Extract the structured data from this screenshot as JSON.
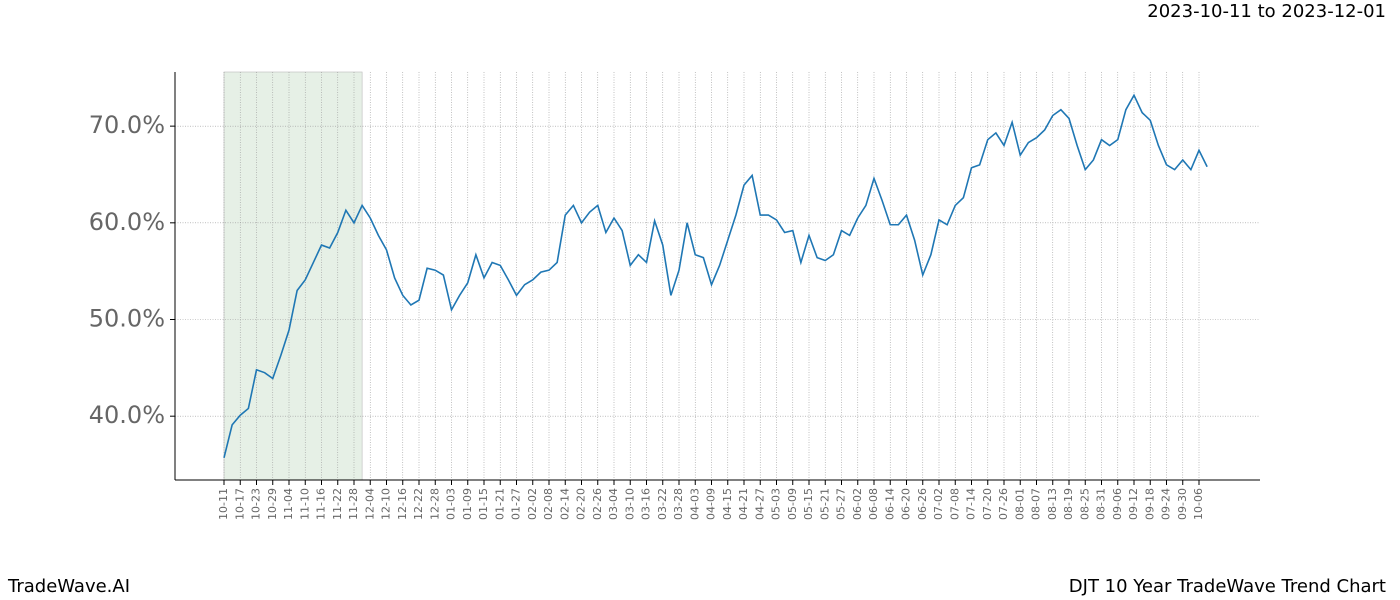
{
  "header": {
    "date_range": "2023-10-11 to 2023-12-01"
  },
  "footer": {
    "brand": "TradeWave.AI",
    "chart_name": "DJT 10 Year TradeWave Trend Chart"
  },
  "chart_data": {
    "type": "line",
    "categories": [
      "10-11",
      null,
      "10-17",
      null,
      "10-23",
      null,
      "10-29",
      null,
      "11-04",
      null,
      "11-10",
      null,
      "11-16",
      null,
      "11-22",
      null,
      "11-28",
      null,
      "12-04",
      null,
      "12-10",
      null,
      "12-16",
      null,
      "12-22",
      null,
      "12-28",
      null,
      "01-03",
      null,
      "01-09",
      null,
      "01-15",
      null,
      "01-21",
      null,
      "01-27",
      null,
      "02-02",
      null,
      "02-08",
      null,
      "02-14",
      null,
      "02-20",
      null,
      "02-26",
      null,
      "03-04",
      null,
      "03-10",
      null,
      "03-16",
      null,
      "03-22",
      null,
      "03-28",
      null,
      "04-03",
      null,
      "04-09",
      null,
      "04-15",
      null,
      "04-21",
      null,
      "04-27",
      null,
      "05-03",
      null,
      "05-09",
      null,
      "05-15",
      null,
      "05-21",
      null,
      "05-27",
      null,
      "06-02",
      null,
      "06-08",
      null,
      "06-14",
      null,
      "06-20",
      null,
      "06-26",
      null,
      "07-02",
      null,
      "07-08",
      null,
      "07-14",
      null,
      "07-20",
      null,
      "07-26",
      null,
      "08-01",
      null,
      "08-07",
      null,
      "08-13",
      null,
      "08-19",
      null,
      "08-25",
      null,
      "08-31",
      null,
      "09-06",
      null,
      "09-12",
      null,
      "09-18",
      null,
      "09-24",
      null,
      "09-30",
      null,
      "10-06",
      null
    ],
    "series": [
      {
        "color": "#1f77b4",
        "values": [
          35.7,
          39.1,
          40.1,
          40.8,
          44.8,
          44.5,
          43.9,
          46.3,
          48.9,
          53.0,
          54.1,
          55.9,
          57.7,
          57.4,
          59.0,
          61.3,
          60.0,
          61.8,
          60.5,
          58.7,
          57.2,
          54.3,
          52.5,
          51.5,
          52.0,
          55.3,
          55.1,
          54.6,
          51.0,
          52.5,
          53.8,
          56.7,
          54.3,
          55.9,
          55.6,
          54.1,
          52.5,
          53.6,
          54.1,
          54.9,
          55.1,
          55.9,
          60.8,
          61.8,
          60.0,
          61.1,
          61.8,
          59.0,
          60.5,
          59.2,
          55.6,
          56.7,
          55.9,
          60.2,
          57.7,
          52.5,
          55.1,
          60.0,
          56.7,
          56.4,
          53.6,
          55.6,
          58.2,
          60.8,
          63.9,
          64.9,
          60.8,
          60.8,
          60.3,
          59.0,
          59.2,
          55.9,
          58.7,
          56.4,
          56.1,
          56.7,
          59.2,
          58.7,
          60.5,
          61.8,
          64.6,
          62.3,
          59.8,
          59.8,
          60.8,
          58.2,
          54.6,
          56.7,
          60.3,
          59.8,
          61.8,
          62.6,
          65.7,
          66.0,
          68.6,
          69.3,
          68.0,
          70.4,
          67.0,
          68.3,
          68.8,
          69.6,
          71.1,
          71.7,
          70.8,
          68.0,
          65.5,
          66.5,
          68.6,
          68.0,
          68.6,
          71.7,
          73.2,
          71.4,
          70.6,
          68.0,
          66.0,
          65.5,
          66.5,
          65.5,
          67.5,
          65.8
        ]
      }
    ],
    "highlight": {
      "start": 0,
      "end": 17,
      "color": "#e6f0e6"
    },
    "ylim": [
      33.4,
      75.6
    ],
    "yticks": [
      {
        "value": 40,
        "label": "40.0%"
      },
      {
        "value": 50,
        "label": "50.0%"
      },
      {
        "value": 60,
        "label": "60.0%"
      },
      {
        "value": 70,
        "label": "70.0%"
      }
    ],
    "grid": true
  }
}
